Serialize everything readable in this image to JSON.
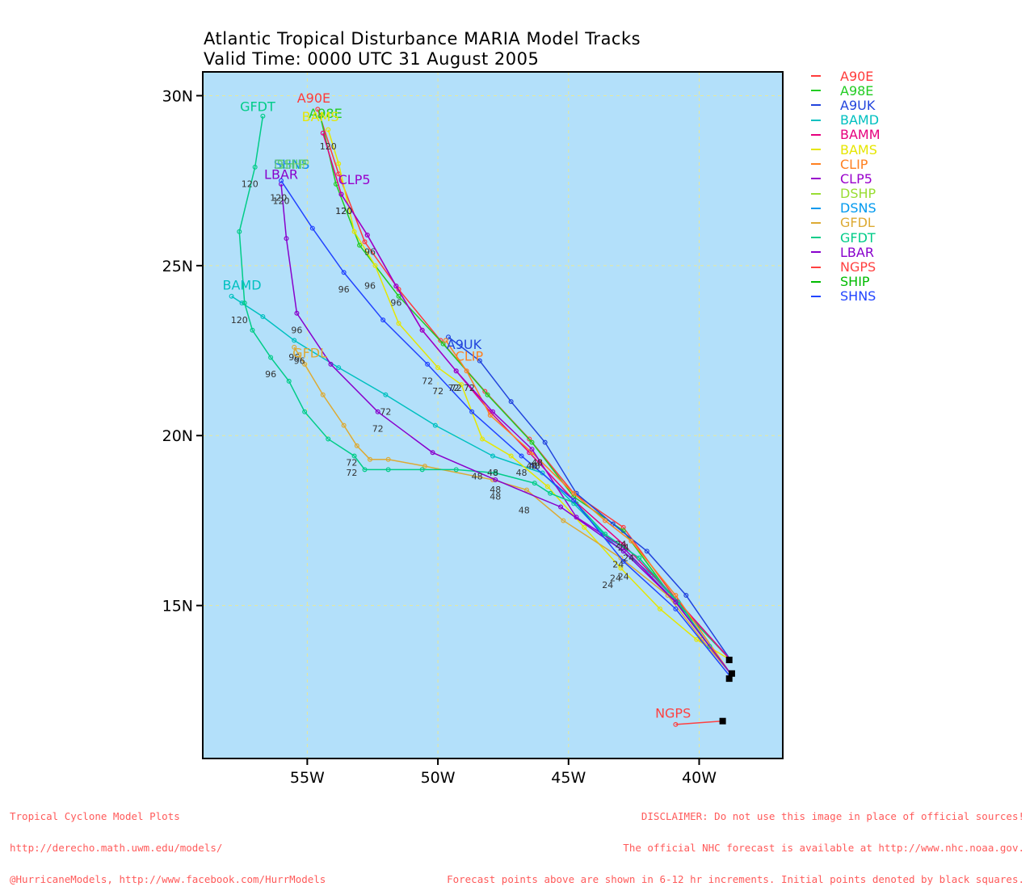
{
  "title_line1": "Atlantic Tropical Disturbance MARIA Model Tracks",
  "title_line2": "Valid Time: 0000 UTC 31 August 2005",
  "footer_left": [
    "Tropical Cyclone Model Plots",
    "http://derecho.math.uwm.edu/models/",
    "@HurricaneModels, http://www.facebook.com/HurrModels"
  ],
  "footer_right": [
    "DISCLAIMER: Do not use this image in place of official sources!",
    "The official NHC forecast is available at http://www.nhc.noaa.gov.",
    "Forecast points above are shown in 6-12 hr increments. Initial points denoted by black squares."
  ],
  "chart_data": {
    "type": "line",
    "x_axis": {
      "range": [
        -59,
        -36.8
      ],
      "ticks": [
        -55,
        -50,
        -45,
        -40
      ],
      "tick_labels": [
        "55W",
        "50W",
        "45W",
        "40W"
      ]
    },
    "y_axis": {
      "range": [
        10.5,
        30.7
      ],
      "ticks": [
        15,
        20,
        25,
        30
      ],
      "tick_labels": [
        "15N",
        "20N",
        "25N",
        "30N"
      ]
    },
    "grid": true,
    "map_background": "#b3e0fa",
    "legend_position": "right, outside plot",
    "series": [
      {
        "name": "A90E",
        "color": "#ff3b3b",
        "label_text": "A90E",
        "label_at": [
          -54.75,
          29.8
        ],
        "points": [
          [
            -38.8,
            13.4
          ],
          [
            -40.9,
            15.2
          ],
          [
            -42.9,
            17.3
          ],
          [
            -44.8,
            18.3
          ],
          [
            -46.5,
            19.9
          ],
          [
            -48.2,
            21.3
          ],
          [
            -49.9,
            22.8
          ],
          [
            -51.5,
            24.3
          ],
          [
            -52.8,
            25.7
          ],
          [
            -53.8,
            27.7
          ],
          [
            -54.6,
            29.6
          ]
        ],
        "hour_labels": []
      },
      {
        "name": "A98E",
        "color": "#22cc22",
        "label_text": "A98E",
        "label_at": [
          -54.3,
          29.35
        ],
        "points": [
          [
            -38.8,
            13.4
          ],
          [
            -40.9,
            15.1
          ],
          [
            -42.9,
            17.2
          ],
          [
            -44.8,
            18.2
          ],
          [
            -46.4,
            19.8
          ],
          [
            -48.1,
            21.2
          ],
          [
            -49.8,
            22.7
          ],
          [
            -51.5,
            24.1
          ],
          [
            -53.0,
            25.6
          ],
          [
            -53.9,
            27.4
          ],
          [
            -54.5,
            29.4
          ]
        ],
        "hour_labels": []
      },
      {
        "name": "A9UK",
        "color": "#2244dd",
        "label_text": "A9UK",
        "label_at": [
          -49.0,
          22.55
        ],
        "points": [
          [
            -38.8,
            13.4
          ],
          [
            -40.5,
            15.3
          ],
          [
            -42.0,
            16.6
          ],
          [
            -43.3,
            17.4
          ],
          [
            -44.7,
            18.3
          ],
          [
            -45.9,
            19.8
          ],
          [
            -47.2,
            21.0
          ],
          [
            -48.4,
            22.2
          ],
          [
            -49.6,
            22.9
          ]
        ],
        "hour_labels": []
      },
      {
        "name": "BAMD",
        "color": "#00c0c0",
        "label_text": "BAMD",
        "label_at": [
          -57.5,
          24.3
        ],
        "points": [
          [
            -38.8,
            13.4
          ],
          [
            -41.8,
            15.9
          ],
          [
            -43.4,
            16.9
          ],
          [
            -44.8,
            18.0
          ],
          [
            -46.0,
            18.9
          ],
          [
            -47.9,
            19.4
          ],
          [
            -50.1,
            20.3
          ],
          [
            -52.0,
            21.2
          ],
          [
            -53.8,
            22.0
          ],
          [
            -55.5,
            22.8
          ],
          [
            -56.7,
            23.5
          ],
          [
            -57.5,
            23.9
          ],
          [
            -57.9,
            24.1
          ]
        ],
        "hour_labels": [
          [
            -43.0,
            17.0,
            "24"
          ],
          [
            -47.9,
            19.1,
            "48"
          ],
          [
            -52.0,
            20.9,
            "72"
          ],
          [
            -55.5,
            22.5,
            "96"
          ],
          [
            -57.6,
            23.6,
            "120"
          ]
        ]
      },
      {
        "name": "BAMM",
        "color": "#e6007e",
        "label_text": "",
        "points": [
          [
            -38.8,
            13.4
          ],
          [
            -40.9,
            15.2
          ],
          [
            -42.9,
            16.8
          ],
          [
            -44.8,
            18.1
          ],
          [
            -46.5,
            19.5
          ],
          [
            -48.0,
            20.7
          ],
          [
            -49.3,
            21.9
          ],
          [
            -50.6,
            23.1
          ],
          [
            -51.6,
            24.4
          ],
          [
            -52.7,
            25.9
          ],
          [
            -53.7,
            27.1
          ],
          [
            -54.4,
            28.9
          ]
        ],
        "hour_labels": [
          [
            -46.4,
            19.3,
            "48"
          ],
          [
            -49.3,
            21.6,
            "72"
          ],
          [
            -51.6,
            24.1,
            "96"
          ],
          [
            -53.6,
            26.8,
            "120"
          ]
        ]
      },
      {
        "name": "BAMS",
        "color": "#e6e600",
        "label_text": "BAMS",
        "label_at": [
          -54.5,
          29.25
        ],
        "points": [
          [
            -38.8,
            13.4
          ],
          [
            -40.1,
            14.0
          ],
          [
            -41.5,
            14.9
          ],
          [
            -43.0,
            16.1
          ],
          [
            -44.4,
            17.3
          ],
          [
            -45.8,
            18.5
          ],
          [
            -47.2,
            19.4
          ],
          [
            -48.3,
            19.9
          ],
          [
            -49.1,
            21.5
          ],
          [
            -50.0,
            22.0
          ],
          [
            -51.5,
            23.3
          ],
          [
            -52.4,
            25.0
          ],
          [
            -53.2,
            26.0
          ],
          [
            -53.8,
            28.0
          ],
          [
            -54.2,
            29.0
          ]
        ],
        "hour_labels": [
          [
            -43.5,
            15.8,
            "24"
          ],
          [
            -48.5,
            19.0,
            "48"
          ],
          [
            -50.0,
            21.5,
            "72"
          ],
          [
            -52.6,
            24.6,
            "96"
          ],
          [
            -54.2,
            28.7,
            "120"
          ]
        ]
      },
      {
        "name": "CLIP",
        "color": "#ff8020",
        "label_text": "CLIP",
        "label_at": [
          -48.8,
          22.2
        ],
        "points": [
          [
            -38.8,
            13.0
          ],
          [
            -40.9,
            15.3
          ],
          [
            -42.6,
            16.9
          ],
          [
            -43.6,
            17.5
          ],
          [
            -44.8,
            18.3
          ],
          [
            -46.4,
            19.5
          ],
          [
            -48.0,
            20.6
          ],
          [
            -48.9,
            21.9
          ],
          [
            -49.7,
            22.8
          ]
        ],
        "hour_labels": [
          [
            -42.7,
            16.6,
            "24"
          ],
          [
            -46.2,
            19.4,
            "48"
          ],
          [
            -48.8,
            21.6,
            "72"
          ]
        ]
      },
      {
        "name": "CLP5",
        "color": "#9900cc",
        "label_text": "CLP5",
        "label_at": [
          -53.2,
          27.4
        ],
        "points": [
          [
            -38.8,
            13.0
          ],
          [
            -40.9,
            15.1
          ],
          [
            -42.9,
            16.7
          ],
          [
            -44.7,
            17.6
          ],
          [
            -46.4,
            19.6
          ],
          [
            -47.9,
            20.7
          ],
          [
            -49.3,
            21.9
          ],
          [
            -50.6,
            23.1
          ],
          [
            -51.6,
            24.4
          ],
          [
            -52.7,
            25.9
          ],
          [
            -53.7,
            27.1
          ]
        ],
        "hour_labels": [
          [
            -46.3,
            19.3,
            "48"
          ],
          [
            -49.4,
            21.6,
            "72"
          ],
          [
            -52.6,
            25.6,
            "96"
          ],
          [
            -53.6,
            26.8,
            "120"
          ]
        ]
      },
      {
        "name": "DSHP",
        "color": "#99dd33",
        "label_text": "",
        "points": [],
        "hour_labels": []
      },
      {
        "name": "DSNS",
        "color": "#0099ee",
        "label_text": "",
        "points": [],
        "hour_labels": []
      },
      {
        "name": "GFDL",
        "color": "#ddaa33",
        "label_text": "GFDL",
        "label_at": [
          -54.9,
          22.3
        ],
        "points": [
          [
            -38.8,
            13.0
          ],
          [
            -39.9,
            14.0
          ],
          [
            -41.2,
            15.3
          ],
          [
            -43.0,
            16.4
          ],
          [
            -45.2,
            17.5
          ],
          [
            -46.6,
            18.4
          ],
          [
            -47.9,
            18.7
          ],
          [
            -50.5,
            19.1
          ],
          [
            -51.9,
            19.3
          ],
          [
            -52.6,
            19.3
          ],
          [
            -53.1,
            19.7
          ],
          [
            -53.6,
            20.3
          ],
          [
            -54.4,
            21.2
          ],
          [
            -55.1,
            22.1
          ],
          [
            -55.5,
            22.6
          ]
        ],
        "hour_labels": [
          [
            -43.2,
            16.0,
            "24"
          ],
          [
            -46.7,
            18.0,
            "48"
          ],
          [
            -53.3,
            19.4,
            "72"
          ],
          [
            -55.3,
            22.4,
            "96"
          ]
        ]
      },
      {
        "name": "GFDT",
        "color": "#00cc88",
        "label_text": "GFDT",
        "label_at": [
          -56.9,
          29.55
        ],
        "points": [
          [
            -38.8,
            13.0
          ],
          [
            -39.6,
            13.8
          ],
          [
            -40.8,
            15.1
          ],
          [
            -42.3,
            16.4
          ],
          [
            -43.6,
            17.1
          ],
          [
            -44.7,
            18.0
          ],
          [
            -45.7,
            18.3
          ],
          [
            -46.3,
            18.6
          ],
          [
            -47.8,
            18.9
          ],
          [
            -49.3,
            19.0
          ],
          [
            -50.6,
            19.0
          ],
          [
            -51.9,
            19.0
          ],
          [
            -52.8,
            19.0
          ],
          [
            -53.2,
            19.4
          ],
          [
            -54.2,
            19.9
          ],
          [
            -55.1,
            20.7
          ],
          [
            -55.7,
            21.6
          ],
          [
            -56.4,
            22.3
          ],
          [
            -57.1,
            23.1
          ],
          [
            -57.4,
            23.9
          ],
          [
            -57.6,
            26.0
          ],
          [
            -57.0,
            27.9
          ],
          [
            -56.7,
            29.4
          ]
        ],
        "hour_labels": [
          [
            -42.9,
            16.9,
            "24"
          ],
          [
            -47.8,
            18.6,
            "48"
          ],
          [
            -53.3,
            19.1,
            "72"
          ],
          [
            -56.4,
            22.0,
            "96"
          ],
          [
            -57.2,
            27.6,
            "120"
          ]
        ]
      },
      {
        "name": "LBAR",
        "color": "#8800cc",
        "label_text": "LBAR",
        "label_at": [
          -56.0,
          27.55
        ],
        "points": [
          [
            -38.8,
            13.0
          ],
          [
            -40.9,
            15.1
          ],
          [
            -42.9,
            16.6
          ],
          [
            -45.3,
            17.9
          ],
          [
            -47.8,
            18.7
          ],
          [
            -50.2,
            19.5
          ],
          [
            -52.3,
            20.7
          ],
          [
            -54.1,
            22.1
          ],
          [
            -55.4,
            23.6
          ],
          [
            -55.8,
            25.8
          ],
          [
            -56.0,
            27.4
          ]
        ],
        "hour_labels": [
          [
            -43.1,
            16.4,
            "24"
          ],
          [
            -47.8,
            18.4,
            "48"
          ],
          [
            -52.3,
            20.4,
            "72"
          ],
          [
            -55.4,
            23.3,
            "96"
          ],
          [
            -56.0,
            27.1,
            "120"
          ]
        ]
      },
      {
        "name": "NGPS",
        "color": "#ff4040",
        "label_text": "NGPS",
        "label_at": [
          -41.0,
          11.7
        ],
        "points": [
          [
            -39.1,
            11.6
          ],
          [
            -40.9,
            11.5
          ]
        ],
        "hour_labels": []
      },
      {
        "name": "SHIP",
        "color": "#00bb00",
        "label_text": "",
        "points": [],
        "hour_labels": []
      },
      {
        "name": "SHNS",
        "color": "#2244ff",
        "label_text": "SHNS",
        "label_at": [
          -55.6,
          27.85
        ],
        "points": [
          [
            -38.8,
            12.9
          ],
          [
            -40.9,
            14.9
          ],
          [
            -42.9,
            16.3
          ],
          [
            -44.8,
            18.1
          ],
          [
            -46.8,
            19.4
          ],
          [
            -48.7,
            20.7
          ],
          [
            -50.4,
            22.1
          ],
          [
            -52.1,
            23.4
          ],
          [
            -53.6,
            24.8
          ],
          [
            -54.8,
            26.1
          ],
          [
            -56.0,
            27.5
          ]
        ],
        "hour_labels": [
          [
            -42.9,
            16.05,
            "24"
          ],
          [
            -46.8,
            19.1,
            "48"
          ],
          [
            -50.4,
            21.8,
            "72"
          ],
          [
            -53.6,
            24.5,
            "96"
          ],
          [
            -56.1,
            27.2,
            "120"
          ]
        ]
      }
    ],
    "initial_points": [
      [
        -38.85,
        13.4
      ],
      [
        -38.75,
        13.0
      ],
      [
        -38.85,
        12.85
      ],
      [
        -39.1,
        11.6
      ]
    ],
    "extra_labels": [
      {
        "text": "SHNS",
        "x": -55.6,
        "y": 27.85,
        "color": "#33bbee"
      },
      {
        "text": "SHIP",
        "x": -55.6,
        "y": 27.85,
        "color": "#22cc22"
      },
      {
        "text": "DSNS",
        "x": -55.6,
        "y": 27.85,
        "color": "#0099ee"
      },
      {
        "text": "DSHP",
        "x": -55.6,
        "y": 27.85,
        "color": "#99dd33"
      }
    ]
  }
}
